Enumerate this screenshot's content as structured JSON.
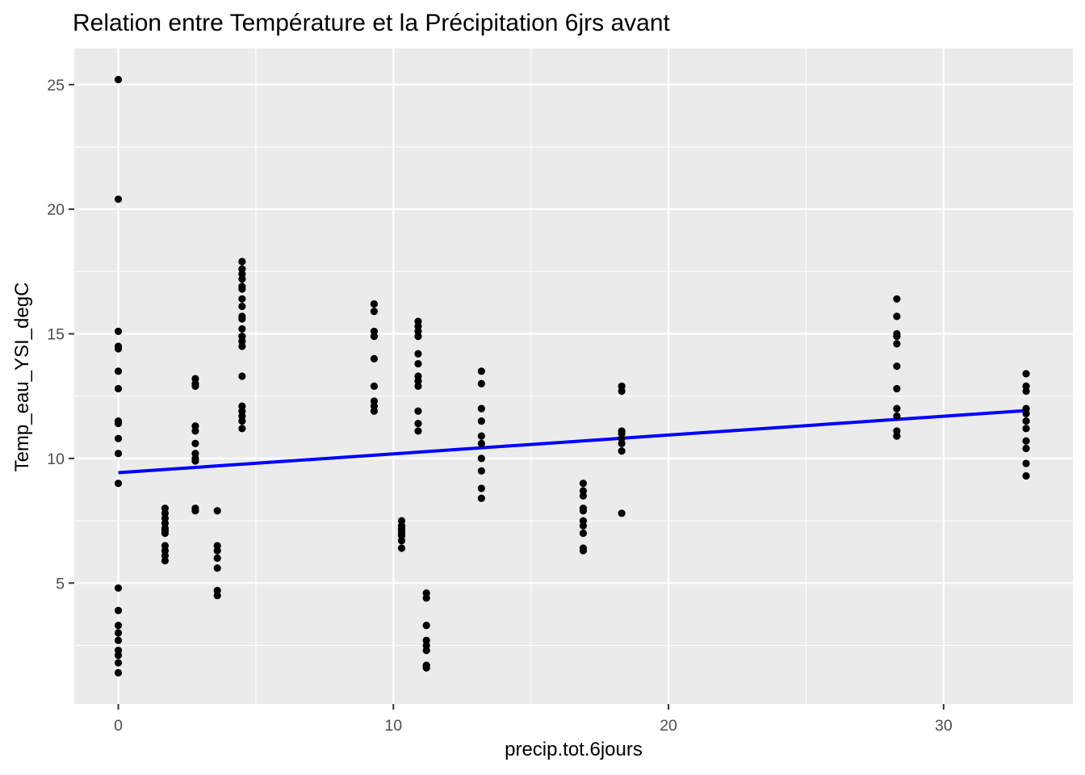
{
  "chart_data": {
    "type": "scatter",
    "title": "Relation entre Température et la Précipitation 6jrs avant",
    "xlabel": "precip.tot.6jours",
    "ylabel": "Temp_eau_YSI_degC",
    "xlim": [
      -1.6,
      34.7
    ],
    "ylim": [
      0.15,
      26.45
    ],
    "x_ticks": [
      0,
      10,
      20,
      30
    ],
    "y_ticks": [
      5,
      10,
      15,
      20,
      25
    ],
    "grid": true,
    "legend": "none",
    "colors": {
      "panel": "#EBEBEB",
      "grid": "#FFFFFF",
      "points": "#000000",
      "fit": "#0000FF",
      "tick_text": "#4D4D4D"
    },
    "points": [
      [
        0,
        25.2
      ],
      [
        0,
        20.4
      ],
      [
        0,
        15.1
      ],
      [
        0,
        14.5
      ],
      [
        0,
        14.4
      ],
      [
        0,
        13.5
      ],
      [
        0,
        12.8
      ],
      [
        0,
        11.5
      ],
      [
        0,
        11.4
      ],
      [
        0,
        10.8
      ],
      [
        0,
        10.2
      ],
      [
        0,
        9.0
      ],
      [
        0,
        4.8
      ],
      [
        0,
        3.9
      ],
      [
        0,
        3.3
      ],
      [
        0,
        3.0
      ],
      [
        0,
        2.7
      ],
      [
        0,
        2.3
      ],
      [
        0,
        2.1
      ],
      [
        0,
        1.8
      ],
      [
        0,
        1.4
      ],
      [
        1.7,
        8.0
      ],
      [
        1.7,
        7.8
      ],
      [
        1.7,
        7.6
      ],
      [
        1.7,
        7.4
      ],
      [
        1.7,
        7.2
      ],
      [
        1.7,
        7.1
      ],
      [
        1.7,
        7.0
      ],
      [
        1.7,
        6.5
      ],
      [
        1.7,
        6.3
      ],
      [
        1.7,
        6.1
      ],
      [
        1.7,
        5.9
      ],
      [
        2.8,
        13.2
      ],
      [
        2.8,
        13.0
      ],
      [
        2.8,
        12.9
      ],
      [
        2.8,
        11.3
      ],
      [
        2.8,
        11.1
      ],
      [
        2.8,
        10.6
      ],
      [
        2.8,
        10.2
      ],
      [
        2.8,
        10.0
      ],
      [
        2.8,
        9.9
      ],
      [
        2.8,
        8.0
      ],
      [
        2.8,
        7.9
      ],
      [
        3.6,
        7.9
      ],
      [
        3.6,
        6.5
      ],
      [
        3.6,
        6.3
      ],
      [
        3.6,
        6.0
      ],
      [
        3.6,
        5.6
      ],
      [
        3.6,
        4.7
      ],
      [
        3.6,
        4.5
      ],
      [
        4.5,
        17.9
      ],
      [
        4.5,
        17.6
      ],
      [
        4.5,
        17.4
      ],
      [
        4.5,
        17.2
      ],
      [
        4.5,
        16.9
      ],
      [
        4.5,
        16.8
      ],
      [
        4.5,
        16.4
      ],
      [
        4.5,
        16.1
      ],
      [
        4.5,
        15.7
      ],
      [
        4.5,
        15.6
      ],
      [
        4.5,
        15.2
      ],
      [
        4.5,
        14.9
      ],
      [
        4.5,
        14.7
      ],
      [
        4.5,
        14.5
      ],
      [
        4.5,
        13.3
      ],
      [
        4.5,
        12.1
      ],
      [
        4.5,
        11.9
      ],
      [
        4.5,
        11.7
      ],
      [
        4.5,
        11.5
      ],
      [
        4.5,
        11.2
      ],
      [
        9.3,
        16.2
      ],
      [
        9.3,
        15.9
      ],
      [
        9.3,
        15.1
      ],
      [
        9.3,
        14.9
      ],
      [
        9.3,
        14.0
      ],
      [
        9.3,
        12.9
      ],
      [
        9.3,
        12.3
      ],
      [
        9.3,
        12.1
      ],
      [
        9.3,
        11.9
      ],
      [
        10.3,
        7.5
      ],
      [
        10.3,
        7.3
      ],
      [
        10.3,
        7.2
      ],
      [
        10.3,
        7.1
      ],
      [
        10.3,
        7.0
      ],
      [
        10.3,
        6.9
      ],
      [
        10.3,
        6.7
      ],
      [
        10.3,
        6.4
      ],
      [
        10.9,
        15.5
      ],
      [
        10.9,
        15.3
      ],
      [
        10.9,
        15.1
      ],
      [
        10.9,
        14.9
      ],
      [
        10.9,
        14.2
      ],
      [
        10.9,
        13.8
      ],
      [
        10.9,
        13.3
      ],
      [
        10.9,
        13.1
      ],
      [
        10.9,
        12.9
      ],
      [
        10.9,
        11.9
      ],
      [
        10.9,
        11.4
      ],
      [
        10.9,
        11.1
      ],
      [
        11.2,
        4.6
      ],
      [
        11.2,
        4.4
      ],
      [
        11.2,
        3.3
      ],
      [
        11.2,
        2.7
      ],
      [
        11.2,
        2.5
      ],
      [
        11.2,
        2.3
      ],
      [
        11.2,
        1.7
      ],
      [
        11.2,
        1.6
      ],
      [
        13.2,
        13.5
      ],
      [
        13.2,
        13.0
      ],
      [
        13.2,
        12.0
      ],
      [
        13.2,
        11.5
      ],
      [
        13.2,
        10.9
      ],
      [
        13.2,
        10.6
      ],
      [
        13.2,
        10.0
      ],
      [
        13.2,
        9.5
      ],
      [
        13.2,
        8.8
      ],
      [
        13.2,
        8.4
      ],
      [
        16.9,
        9.0
      ],
      [
        16.9,
        8.7
      ],
      [
        16.9,
        8.5
      ],
      [
        16.9,
        8.0
      ],
      [
        16.9,
        7.9
      ],
      [
        16.9,
        7.5
      ],
      [
        16.9,
        7.3
      ],
      [
        16.9,
        7.0
      ],
      [
        16.9,
        6.4
      ],
      [
        16.9,
        6.3
      ],
      [
        18.3,
        12.9
      ],
      [
        18.3,
        12.7
      ],
      [
        18.3,
        11.1
      ],
      [
        18.3,
        11.0
      ],
      [
        18.3,
        10.8
      ],
      [
        18.3,
        10.6
      ],
      [
        18.3,
        10.3
      ],
      [
        18.3,
        7.8
      ],
      [
        28.3,
        16.4
      ],
      [
        28.3,
        15.7
      ],
      [
        28.3,
        15.0
      ],
      [
        28.3,
        14.9
      ],
      [
        28.3,
        14.6
      ],
      [
        28.3,
        13.7
      ],
      [
        28.3,
        12.8
      ],
      [
        28.3,
        12.0
      ],
      [
        28.3,
        11.7
      ],
      [
        28.3,
        11.1
      ],
      [
        28.3,
        10.9
      ],
      [
        33.0,
        13.4
      ],
      [
        33.0,
        12.9
      ],
      [
        33.0,
        12.7
      ],
      [
        33.0,
        12.0
      ],
      [
        33.0,
        11.8
      ],
      [
        33.0,
        11.5
      ],
      [
        33.0,
        11.2
      ],
      [
        33.0,
        10.7
      ],
      [
        33.0,
        10.4
      ],
      [
        33.0,
        9.8
      ],
      [
        33.0,
        9.3
      ]
    ],
    "fit_line": {
      "x": [
        0,
        33.0
      ],
      "y": [
        9.43,
        11.92
      ]
    }
  }
}
